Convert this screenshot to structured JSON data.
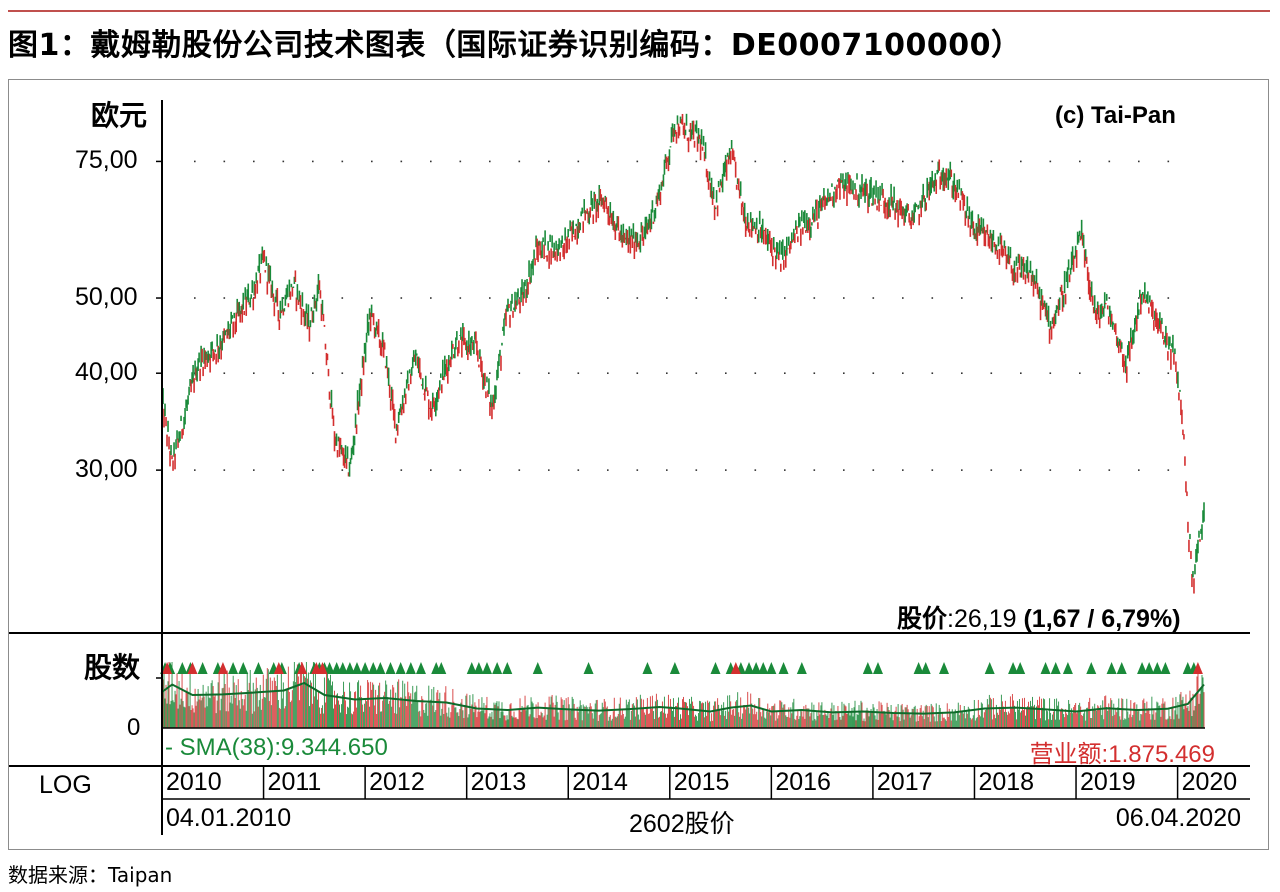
{
  "title": "图1：戴姆勒股份公司技术图表（国际证券识别编码：DE0007100000）",
  "source": "数据来源：Taipan",
  "chart_data": {
    "type": "line",
    "price_panel": {
      "ylabel": "欧元",
      "scale": "log",
      "y_ticks": [
        {
          "value": 75,
          "label": "75,00"
        },
        {
          "value": 50,
          "label": "50,00"
        },
        {
          "value": 40,
          "label": "40,00"
        },
        {
          "value": 30,
          "label": "30,00"
        }
      ],
      "ylim": [
        18.5,
        90
      ],
      "grid": "dotted",
      "copyright": "(c) Tai-Pan",
      "series": [
        {
          "color": "#1a8a3a",
          "x": [
            2010.0,
            2010.1,
            2010.35,
            2010.6,
            2010.9,
            2011.0,
            2011.15,
            2011.3,
            2011.45,
            2011.55,
            2011.7,
            2011.85,
            2012.05,
            2012.2,
            2012.3,
            2012.5,
            2012.65,
            2012.9,
            2013.1,
            2013.25,
            2013.4,
            2013.55,
            2013.7,
            2013.95,
            2014.15,
            2014.35,
            2014.55,
            2014.75,
            2014.9,
            2015.05,
            2015.15,
            2015.3,
            2015.45,
            2015.6,
            2015.75,
            2015.85,
            2016.1,
            2016.3,
            2016.45,
            2016.65,
            2016.85,
            2017.0,
            2017.2,
            2017.4,
            2017.55,
            2017.7,
            2017.85,
            2018.0,
            2018.2,
            2018.4,
            2018.55,
            2018.75,
            2018.95,
            2019.05,
            2019.2,
            2019.3,
            2019.5,
            2019.65,
            2019.85,
            2019.97,
            2020.05,
            2020.1,
            2020.15,
            2020.2,
            2020.26
          ],
          "y": [
            37,
            30.5,
            41,
            44,
            51,
            56,
            48,
            52,
            46,
            52,
            33,
            30,
            48,
            42,
            34,
            42,
            36,
            44,
            43,
            36,
            48,
            50,
            58,
            58,
            64,
            67,
            59,
            60,
            68,
            84,
            82,
            80,
            66,
            77,
            63,
            62,
            56,
            62,
            64,
            70,
            69,
            68,
            66,
            63,
            69,
            73,
            68,
            61,
            59,
            54,
            54,
            46,
            54,
            60,
            47,
            49,
            41,
            51,
            45,
            42,
            35,
            26,
            21.5,
            23.8,
            26.19
          ]
        }
      ],
      "price_label": "股价",
      "price_value": ":26,19",
      "price_change": "(1,67 / 6,79%)"
    },
    "volume_panel": {
      "ylabel": "股数",
      "zero_label": "0",
      "sma_label": "- SMA(38):9.344.650",
      "turnover_label": "营业额:1.875.469",
      "sma": {
        "color": "#1a8a3a",
        "x": [
          2010.0,
          2010.1,
          2010.3,
          2010.6,
          2010.9,
          2011.2,
          2011.4,
          2011.6,
          2011.9,
          2012.2,
          2012.5,
          2012.8,
          2013.1,
          2013.4,
          2013.7,
          2014.0,
          2014.3,
          2014.6,
          2014.9,
          2015.1,
          2015.4,
          2015.6,
          2015.8,
          2016.0,
          2016.3,
          2016.6,
          2016.9,
          2017.2,
          2017.5,
          2017.8,
          2018.1,
          2018.4,
          2018.7,
          2019.0,
          2019.3,
          2019.6,
          2019.9,
          2020.1,
          2020.26
        ],
        "y": [
          12.0,
          14.5,
          11.0,
          11.2,
          11.8,
          12.5,
          15.0,
          11.0,
          9.5,
          10.0,
          9.0,
          8.5,
          6.5,
          6.0,
          6.8,
          6.2,
          5.8,
          6.3,
          7.0,
          6.5,
          5.5,
          6.8,
          7.5,
          5.5,
          6.0,
          5.2,
          5.5,
          5.0,
          4.8,
          5.2,
          6.5,
          6.8,
          6.2,
          5.5,
          6.6,
          6.0,
          6.4,
          8.0,
          14.5
        ]
      },
      "buy_signals": [
        2010.03,
        2010.08,
        2010.2,
        2010.28,
        2010.4,
        2010.55,
        2010.7,
        2010.8,
        2010.95,
        2011.1,
        2011.18,
        2011.35,
        2011.5,
        2011.55,
        2011.6,
        2011.65,
        2011.72,
        2011.78,
        2011.85,
        2011.92,
        2012.0,
        2012.08,
        2012.15,
        2012.25,
        2012.35,
        2012.45,
        2012.55,
        2012.7,
        2012.75,
        2013.05,
        2013.12,
        2013.2,
        2013.3,
        2013.4,
        2013.7,
        2014.2,
        2014.78,
        2015.05,
        2015.45,
        2015.6,
        2015.7,
        2015.78,
        2015.85,
        2015.92,
        2016.0,
        2016.12,
        2016.3,
        2016.95,
        2017.05,
        2017.45,
        2017.52,
        2017.7,
        2018.15,
        2018.38,
        2018.45,
        2018.7,
        2018.8,
        2018.92,
        2019.15,
        2019.35,
        2019.45,
        2019.65,
        2019.72,
        2019.8,
        2019.88,
        2020.1,
        2020.16
      ],
      "sell_signals": [
        2010.05,
        2010.3,
        2010.6,
        2011.15,
        2011.38,
        2011.52,
        2011.58,
        2015.65,
        2020.2
      ]
    },
    "x_axis": {
      "scale_label": "LOG",
      "years": [
        "2010",
        "2011",
        "2012",
        "2013",
        "2014",
        "2015",
        "2016",
        "2017",
        "2018",
        "2019",
        "2020"
      ],
      "xlim": [
        2010.0,
        2020.26
      ],
      "start_date": "04.01.2010",
      "end_date": "06.04.2020",
      "instrument": "2602股价"
    }
  }
}
